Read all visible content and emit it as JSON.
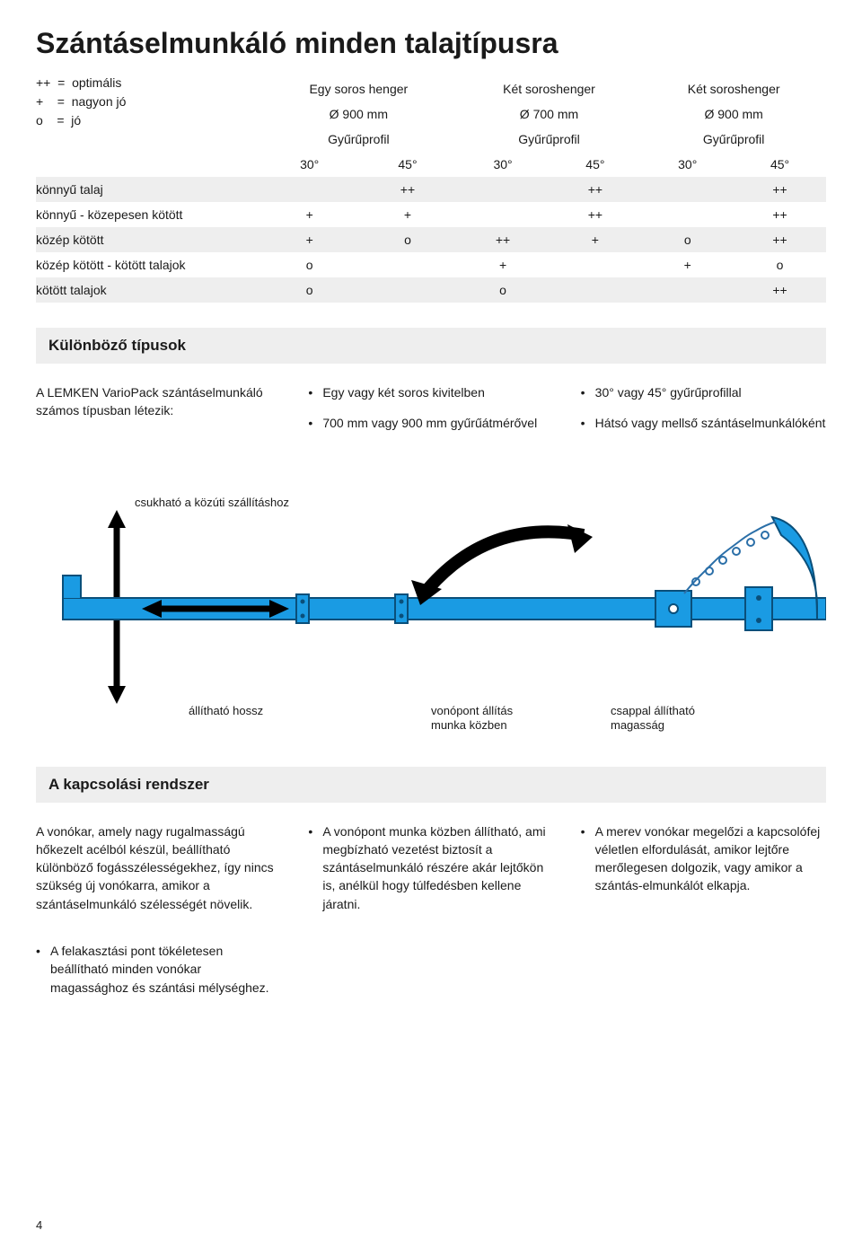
{
  "page_title": "Szántáselmunkáló minden talajtípusra",
  "legend": {
    "opt": "++  =  optimális",
    "good": "+    =  nagyon jó",
    "ok": "o    =  jó"
  },
  "table": {
    "groups": [
      "Egy soros henger",
      "Két soroshenger",
      "Két soroshenger"
    ],
    "diams": [
      "Ø 900 mm",
      "Ø 700 mm",
      "Ø 900 mm"
    ],
    "profile_label": "Gyűrűprofil",
    "angles": [
      "30°",
      "45°",
      "30°",
      "45°",
      "30°",
      "45°"
    ],
    "rows": [
      {
        "label": "könnyű talaj",
        "cells": [
          "",
          "++",
          "",
          "++",
          "",
          "++"
        ]
      },
      {
        "label": "könnyű - közepesen kötött",
        "cells": [
          "+",
          "+",
          "",
          "++",
          "",
          "++"
        ]
      },
      {
        "label": "közép kötött",
        "cells": [
          "+",
          "o",
          "++",
          "+",
          "o",
          "++"
        ]
      },
      {
        "label": "közép kötött - kötött talajok",
        "cells": [
          "o",
          "",
          "+",
          "",
          "+",
          "o"
        ]
      },
      {
        "label": "kötött talajok",
        "cells": [
          "o",
          "",
          "o",
          "",
          "",
          "++"
        ]
      }
    ]
  },
  "types_heading": "Különböző típusok",
  "types_cols": {
    "left": "A LEMKEN VarioPack szántáselmunkáló számos típusban létezik:",
    "mid_items": [
      "Egy vagy két soros kivitelben",
      "700 mm vagy 900 mm gyűrűátmérővel"
    ],
    "right_items": [
      "30° vagy 45° gyűrűprofillal",
      "Hátsó vagy mellső szántáselmunkálóként"
    ]
  },
  "diagram": {
    "colors": {
      "bar_fill": "#1a9be3",
      "bar_stroke": "#0a4f7a",
      "arrow": "#000000",
      "chain": "#2b6fa8",
      "text": "#1a1a1a"
    },
    "labels": {
      "fold": "csukható a közúti szállításhoz",
      "length": "állítható hossz",
      "tow": "vonópont állítás\nmunka közben",
      "pin": "csappal állítható\nmagasság"
    }
  },
  "coupling_heading": "A kapcsolási rendszer",
  "coupling_cols": {
    "left": "A vonókar, amely nagy rugalmasságú hőkezelt acélból készül, beállítható különböző fogásszélességekhez, így nincs szükség új vonókarra, amikor a szántáselmunkáló szélességét növelik.",
    "mid_items": [
      "A vonópont munka közben állítható, ami megbízható vezetést biztosít a szántáselmunkáló részére akár lejtőkön is, anélkül hogy túlfedésben kellene járatni."
    ],
    "right_items": [
      "A merev vonókar megelőzi a kapcsolófej véletlen elfordulását, amikor lejtőre merőlegesen dolgozik, vagy amikor a  szántás-elmunkálót elkapja."
    ],
    "below_item": "A felakasztási pont tökéletesen beállítható minden vonókar magassághoz és szántási mélységhez."
  },
  "page_number": "4"
}
